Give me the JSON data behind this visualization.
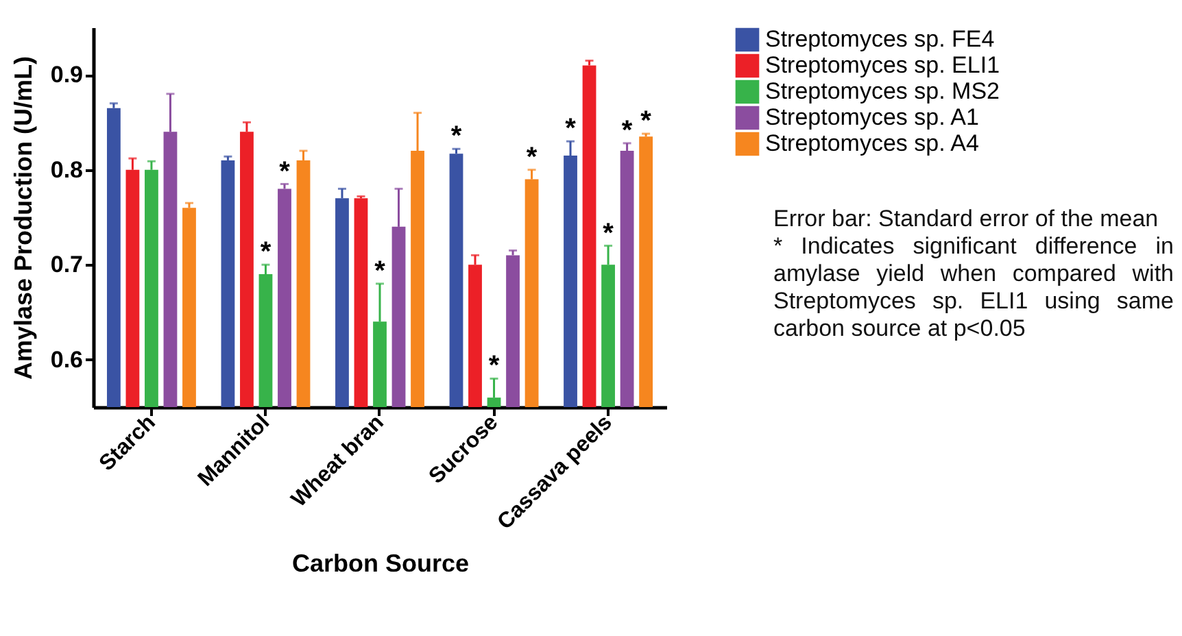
{
  "chart_data": {
    "type": "bar",
    "xlabel": "Carbon Source",
    "ylabel": "Amylase Production (U/mL)",
    "categories": [
      "Starch",
      "Mannitol",
      "Wheat bran",
      "Sucrose",
      "Cassava peels"
    ],
    "ylim": [
      0.55,
      0.95
    ],
    "yticks": [
      0.6,
      0.7,
      0.8,
      0.9
    ],
    "grid": false,
    "legend": "top right",
    "series": [
      {
        "name": "Streptomyces sp. FE4",
        "color": "#3a53a4",
        "values": [
          0.865,
          0.81,
          0.77,
          0.817,
          0.815
        ],
        "errors": [
          [
            0.865,
            0.87
          ],
          [
            0.81,
            0.814
          ],
          [
            0.77,
            0.78
          ],
          [
            0.817,
            0.822
          ],
          [
            0.815,
            0.83
          ]
        ],
        "value_labels": [
          null,
          null,
          null,
          "*",
          "*"
        ]
      },
      {
        "name": "Streptomyces sp. ELI1",
        "color": "#ec2027",
        "values": [
          0.8,
          0.84,
          0.77,
          0.7,
          0.91
        ],
        "errors": [
          [
            0.8,
            0.812
          ],
          [
            0.84,
            0.85
          ],
          [
            0.77,
            0.772
          ],
          [
            0.7,
            0.71
          ],
          [
            0.91,
            0.915
          ]
        ],
        "value_labels": [
          null,
          null,
          null,
          null,
          null
        ]
      },
      {
        "name": "Streptomyces sp. MS2",
        "color": "#37b34a",
        "values": [
          0.8,
          0.69,
          0.64,
          0.56,
          0.7
        ],
        "errors": [
          [
            0.8,
            0.809
          ],
          [
            0.69,
            0.7
          ],
          [
            0.64,
            0.68
          ],
          [
            0.56,
            0.58
          ],
          [
            0.7,
            0.72
          ]
        ],
        "value_labels": [
          null,
          "*",
          "*",
          "*",
          "*"
        ]
      },
      {
        "name": "Streptomyces sp. A1",
        "color": "#8b4d9f",
        "values": [
          0.84,
          0.78,
          0.74,
          0.71,
          0.82
        ],
        "errors": [
          [
            0.84,
            0.88
          ],
          [
            0.78,
            0.785
          ],
          [
            0.74,
            0.78
          ],
          [
            0.71,
            0.715
          ],
          [
            0.82,
            0.828
          ]
        ],
        "value_labels": [
          null,
          "*",
          null,
          null,
          "*"
        ]
      },
      {
        "name": "Streptomyces sp. A4",
        "color": "#f6861f",
        "values": [
          0.76,
          0.81,
          0.82,
          0.79,
          0.835
        ],
        "errors": [
          [
            0.76,
            0.765
          ],
          [
            0.81,
            0.82
          ],
          [
            0.82,
            0.86
          ],
          [
            0.79,
            0.8
          ],
          [
            0.835,
            0.838
          ]
        ],
        "value_labels": [
          null,
          null,
          null,
          "*",
          "*"
        ]
      }
    ],
    "annotations": [
      "Error bar: Standard error of the mean",
      "* Indicates significant difference in amylase yield when compared with Streptomyces sp. ELI1 using same carbon source at p<0.05"
    ]
  }
}
